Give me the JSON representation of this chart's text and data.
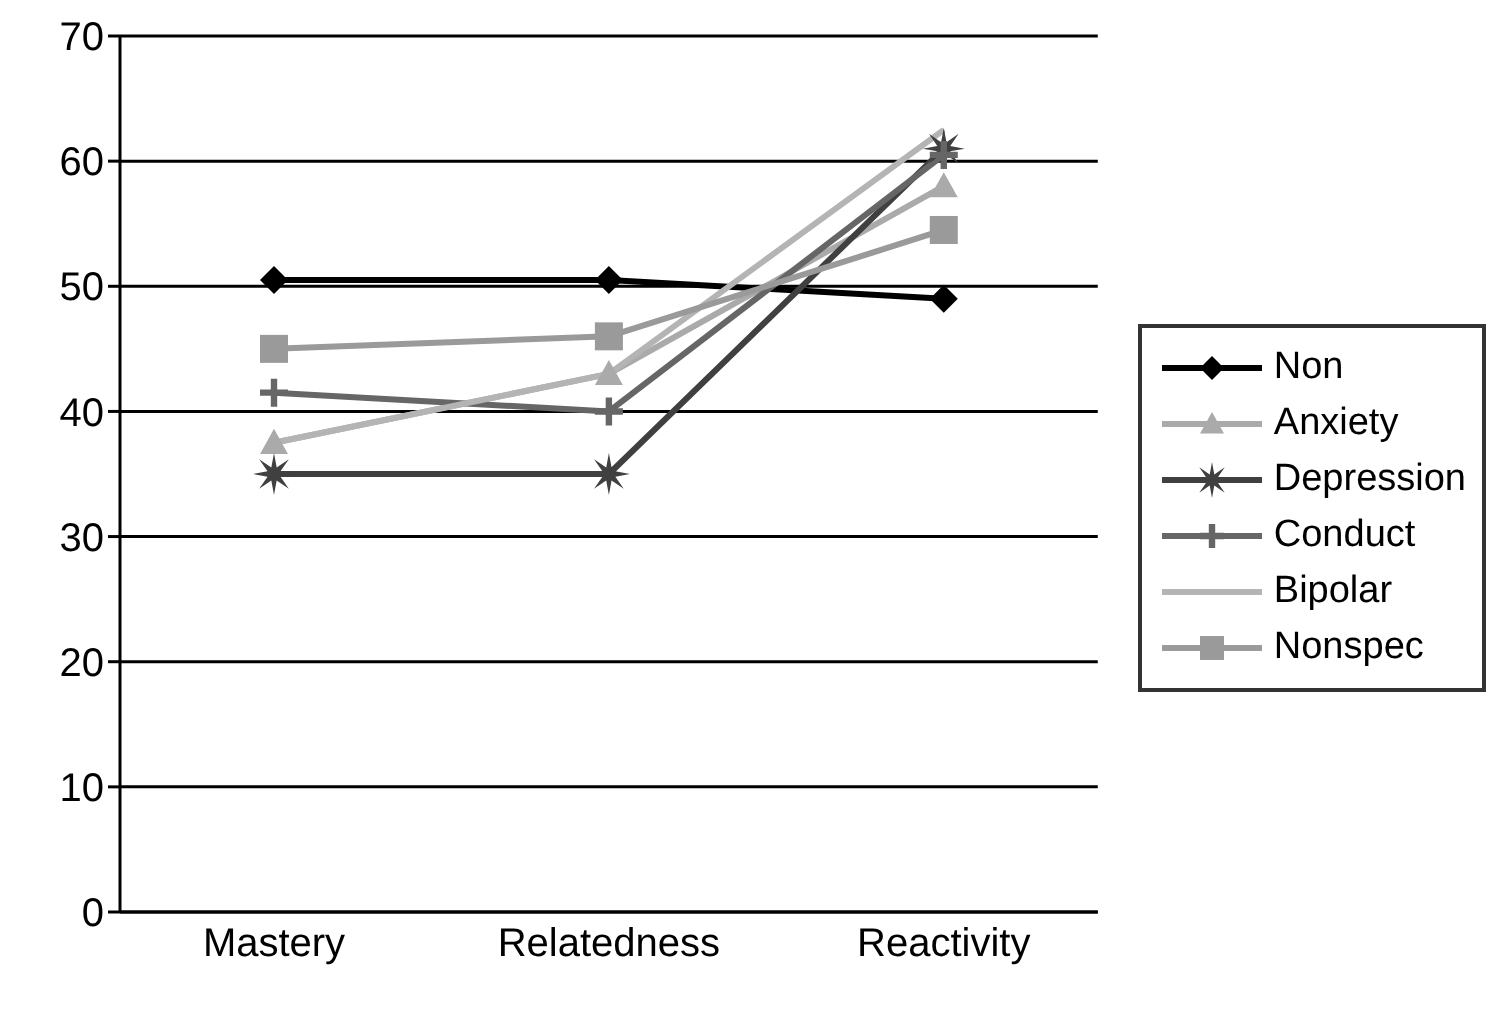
{
  "chart_data": {
    "type": "line",
    "categories": [
      "Mastery",
      "Relatedness",
      "Reactivity"
    ],
    "series": [
      {
        "name": "Non",
        "color": "#000000",
        "marker": "diamond",
        "values": [
          50.5,
          50.5,
          49
        ]
      },
      {
        "name": "Anxiety",
        "color": "#aaaaaa",
        "marker": "triangle",
        "values": [
          37.5,
          43,
          58
        ]
      },
      {
        "name": "Depression",
        "color": "#404040",
        "marker": "star",
        "values": [
          35,
          35,
          61
        ]
      },
      {
        "name": "Conduct",
        "color": "#666666",
        "marker": "cross",
        "values": [
          41.5,
          40,
          60.5
        ]
      },
      {
        "name": "Bipolar",
        "color": "#b4b4b4",
        "marker": "none",
        "values": [
          37.5,
          43,
          62.5
        ]
      },
      {
        "name": "Nonspec",
        "color": "#9a9a9a",
        "marker": "square",
        "values": [
          45,
          46,
          54.5
        ]
      }
    ],
    "ylim": [
      0,
      70
    ],
    "yticks": [
      0,
      10,
      20,
      30,
      40,
      50,
      60,
      70
    ],
    "grid": "y",
    "legend": "right"
  }
}
